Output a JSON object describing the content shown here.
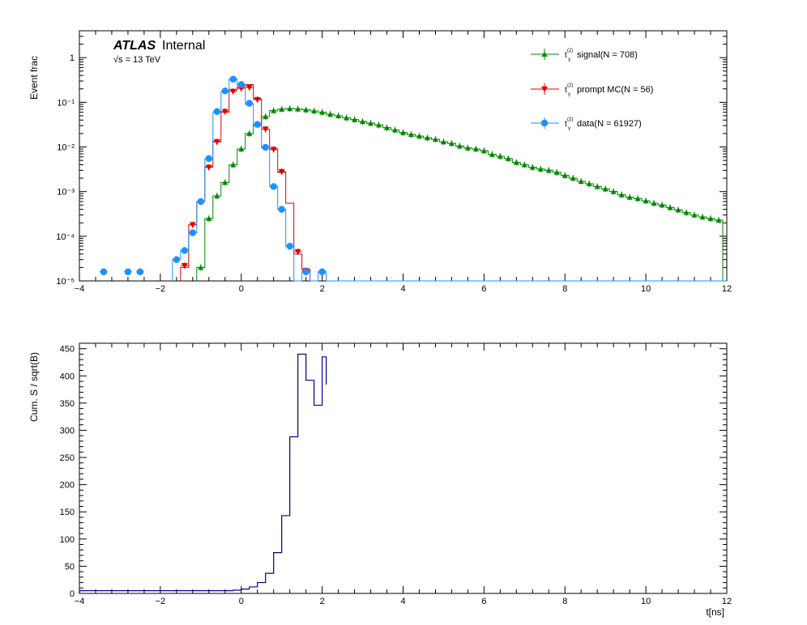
{
  "colors": {
    "signal": "#008800",
    "prompt": "#dd0000",
    "data": "#1e90ff",
    "cumulative": "#000080",
    "frame": "#000000"
  },
  "chart_data": [
    {
      "type": "line",
      "title": "",
      "xlabel": "",
      "ylabel": "Event frac",
      "xlim": [
        -4,
        12
      ],
      "ylim": [
        1e-05,
        4
      ],
      "yscale": "log",
      "grid": false,
      "legend_position": "top-right",
      "atlas_label": "ATLAS",
      "atlas_sublabel": "Internal",
      "energy_label": "√s = 13 TeV",
      "xticks": [
        "−4",
        "−2",
        "0",
        "2",
        "4",
        "6",
        "8",
        "10",
        "12"
      ],
      "yticks": [
        "10⁻⁵",
        "10⁻⁴",
        "10⁻³",
        "10⁻²",
        "10⁻¹",
        "1"
      ],
      "series": [
        {
          "name": "t_γ^(2) signal(N = 708)",
          "legend_main": "t",
          "legend_sub": "γ",
          "legend_sup": "(2)",
          "legend_text": "signal(N = 708)",
          "marker": "triangle-up",
          "x": [
            -1,
            -0.8,
            -0.6,
            -0.4,
            -0.2,
            0,
            0.2,
            0.4,
            0.6,
            0.8,
            1.0,
            1.2,
            1.4,
            1.6,
            1.8,
            2.0,
            2.2,
            2.4,
            2.6,
            2.8,
            3.0,
            3.2,
            3.4,
            3.6,
            3.8,
            4.0,
            4.2,
            4.4,
            4.6,
            4.8,
            5.0,
            5.2,
            5.4,
            5.6,
            5.8,
            6.0,
            6.2,
            6.4,
            6.6,
            6.8,
            7.0,
            7.2,
            7.4,
            7.6,
            7.8,
            8.0,
            8.2,
            8.4,
            8.6,
            8.8,
            9.0,
            9.2,
            9.4,
            9.6,
            9.8,
            10.0,
            10.2,
            10.4,
            10.6,
            10.8,
            11.0,
            11.2,
            11.4,
            11.6,
            11.8
          ],
          "y": [
            2e-05,
            0.00025,
            0.0008,
            0.0016,
            0.004,
            0.009,
            0.02,
            0.032,
            0.048,
            0.065,
            0.07,
            0.072,
            0.071,
            0.068,
            0.064,
            0.06,
            0.054,
            0.05,
            0.045,
            0.041,
            0.037,
            0.034,
            0.031,
            0.027,
            0.024,
            0.021,
            0.019,
            0.0175,
            0.016,
            0.0148,
            0.013,
            0.012,
            0.0105,
            0.0095,
            0.009,
            0.0082,
            0.0068,
            0.0062,
            0.0055,
            0.0045,
            0.004,
            0.0035,
            0.0032,
            0.003,
            0.0027,
            0.0023,
            0.002,
            0.0017,
            0.0015,
            0.0013,
            0.00115,
            0.001,
            0.00085,
            0.00075,
            0.0007,
            0.00062,
            0.00055,
            0.0005,
            0.00044,
            0.00039,
            0.00034,
            0.0003,
            0.00027,
            0.00025,
            0.00023
          ]
        },
        {
          "name": "t_γ^(2) prompt MC(N = 56)",
          "legend_main": "t",
          "legend_sub": "γ",
          "legend_sup": "(2)",
          "legend_text": "prompt MC(N = 56)",
          "marker": "triangle-down",
          "x": [
            -1.4,
            -1.2,
            -1.0,
            -0.8,
            -0.6,
            -0.4,
            -0.2,
            0,
            0.2,
            0.4,
            0.6,
            0.8,
            1.0,
            1.2,
            1.4,
            1.6
          ],
          "y": [
            2e-05,
            0.00018,
            0.0006,
            0.0036,
            0.0135,
            0.06,
            0.19,
            0.22,
            0.25,
            0.12,
            0.025,
            0.009,
            0.0027,
            0.00055,
            4e-05,
            1.8e-05
          ],
          "markers_x": [
            -1.4,
            -1.2,
            -0.8,
            -0.6,
            -0.4,
            -0.2,
            0,
            0.2,
            0.4,
            0.6,
            0.8,
            1.0,
            1.4,
            1.6
          ],
          "markers_y": [
            2.2e-05,
            0.00018,
            0.0035,
            0.013,
            0.062,
            0.175,
            0.205,
            0.215,
            0.115,
            0.025,
            0.0088,
            0.0028,
            4.5e-05,
            1.7e-05
          ]
        },
        {
          "name": "t_γ^(2) data(N = 61927)",
          "legend_main": "t",
          "legend_sub": "γ",
          "legend_sup": "(2)",
          "legend_text": "data(N = 61927)",
          "marker": "circle",
          "x": [
            -1.6,
            -1.4,
            -1.2,
            -1.0,
            -0.8,
            -0.6,
            -0.4,
            -0.2,
            0,
            0.2,
            0.4,
            0.6,
            0.8,
            1.0,
            1.2,
            1.4,
            1.6,
            1.8,
            2.0
          ],
          "y": [
            3e-05,
            4.8e-05,
            0.00012,
            0.0006,
            0.0055,
            0.06,
            0.17,
            0.33,
            0.24,
            0.09,
            0.03,
            0.0095,
            0.0013,
            0.0004,
            6e-05,
            1e-05,
            1.6e-05,
            1e-05,
            1.6e-05
          ],
          "markers_x": [
            -3.4,
            -2.8,
            -2.5,
            -1.6,
            -1.4,
            -1.2,
            -1.0,
            -0.8,
            -0.6,
            -0.4,
            -0.2,
            0,
            0.2,
            0.4,
            0.6,
            0.8,
            1.0,
            1.2,
            1.6,
            2.0
          ],
          "markers_y": [
            1.6e-05,
            1.6e-05,
            1.6e-05,
            3e-05,
            4.8e-05,
            0.00012,
            0.0006,
            0.0055,
            0.062,
            0.18,
            0.33,
            0.25,
            0.095,
            0.032,
            0.0098,
            0.0013,
            0.0004,
            6e-05,
            1.6e-05,
            1.6e-05
          ]
        }
      ]
    },
    {
      "type": "line",
      "title": "",
      "xlabel": "t[ns]",
      "ylabel": "Cum. S / sqrt(B)",
      "xlim": [
        -4,
        12
      ],
      "ylim": [
        0,
        460
      ],
      "grid": false,
      "xticks": [
        "−4",
        "−2",
        "0",
        "2",
        "4",
        "6",
        "8",
        "10",
        "12"
      ],
      "yticks": [
        "0",
        "50",
        "100",
        "150",
        "200",
        "250",
        "300",
        "350",
        "400",
        "450"
      ],
      "series": [
        {
          "bin_edges": [
            -4,
            -0.4,
            -0.2,
            0,
            0.2,
            0.4,
            0.6,
            0.8,
            1.0,
            1.2,
            1.4,
            1.6,
            1.8,
            2.0,
            2.1
          ],
          "values": [
            5,
            5,
            6,
            8,
            12,
            20,
            37,
            75,
            143,
            288,
            440,
            392,
            346,
            435,
            384
          ]
        }
      ]
    }
  ]
}
